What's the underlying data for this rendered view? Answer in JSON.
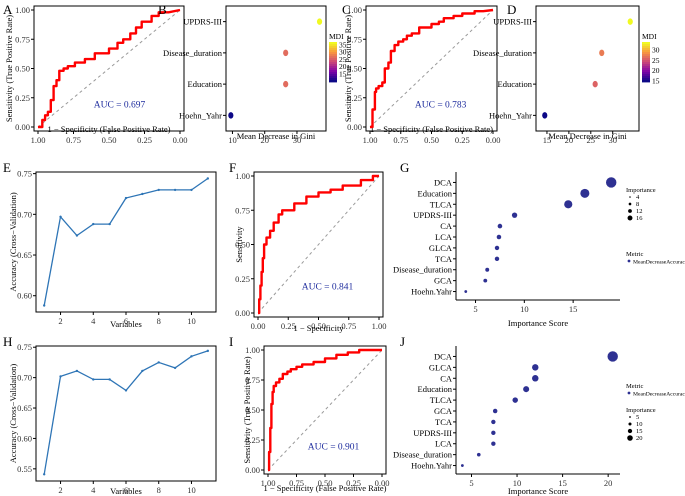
{
  "chart_data": [
    {
      "id": "A",
      "panel_label": "A",
      "type": "line",
      "subtype": "roc",
      "xlabel": "1 − Specificity (False Positive Rate)",
      "ylabel": "Sensitivity (True Positive Rate)",
      "xlim": [
        1.0,
        0.0
      ],
      "ylim": [
        0.0,
        1.0
      ],
      "x_ticks": [
        1.0,
        0.75,
        0.5,
        0.25,
        0.0
      ],
      "x_tick_labels": [
        "1.00",
        "0.75",
        "0.50",
        "0.25",
        "0.00"
      ],
      "y_ticks": [
        0.0,
        0.25,
        0.5,
        0.75,
        1.0
      ],
      "y_tick_labels": [
        "0.00",
        "0.25",
        "0.50",
        "0.75",
        "1.00"
      ],
      "annotation": "AUC = 0.697",
      "curve_color": "#ff0000",
      "diagonal": true,
      "x": [
        1.0,
        0.97,
        0.97,
        0.95,
        0.95,
        0.93,
        0.93,
        0.91,
        0.91,
        0.89,
        0.89,
        0.87,
        0.87,
        0.85,
        0.85,
        0.82,
        0.82,
        0.79,
        0.79,
        0.74,
        0.74,
        0.67,
        0.67,
        0.6,
        0.6,
        0.5,
        0.5,
        0.44,
        0.44,
        0.4,
        0.4,
        0.35,
        0.35,
        0.31,
        0.31,
        0.27,
        0.27,
        0.2,
        0.2,
        0.15,
        0.15,
        0.08,
        0.0
      ],
      "y": [
        0.0,
        0.0,
        0.06,
        0.06,
        0.1,
        0.1,
        0.13,
        0.13,
        0.23,
        0.23,
        0.35,
        0.35,
        0.4,
        0.4,
        0.48,
        0.48,
        0.5,
        0.5,
        0.52,
        0.52,
        0.55,
        0.55,
        0.58,
        0.58,
        0.63,
        0.63,
        0.67,
        0.67,
        0.72,
        0.72,
        0.75,
        0.75,
        0.8,
        0.8,
        0.85,
        0.85,
        0.9,
        0.9,
        0.95,
        0.95,
        0.98,
        0.98,
        1.0
      ]
    },
    {
      "id": "B",
      "panel_label": "B",
      "type": "scatter",
      "subtype": "importance",
      "xlabel": "Mean Decrease in Gini",
      "ylabel": "",
      "categories": [
        "Hoehn_Yahr",
        "Education",
        "Disease_duration",
        "UPDRS-III"
      ],
      "values": [
        9.5,
        26.5,
        26.5,
        37.0
      ],
      "xlim": [
        8,
        39
      ],
      "x_ticks": [
        10,
        20,
        30
      ],
      "x_tick_labels": [
        "10",
        "20",
        "30"
      ],
      "legend_title": "MDI",
      "legend_ticks": [
        15,
        20,
        25,
        30,
        35
      ],
      "legend_tick_labels": [
        "15",
        "20",
        "25",
        "30",
        "35"
      ],
      "color_range": [
        9.5,
        37.0
      ]
    },
    {
      "id": "C",
      "panel_label": "C",
      "type": "line",
      "subtype": "roc",
      "xlabel": "1 − Specificity (False Positive Rate)",
      "ylabel": "Sensitivity (True Positive Rate)",
      "xlim": [
        1.0,
        0.0
      ],
      "ylim": [
        0.0,
        1.0
      ],
      "x_ticks": [
        1.0,
        0.75,
        0.5,
        0.25,
        0.0
      ],
      "x_tick_labels": [
        "1.00",
        "0.75",
        "0.50",
        "0.25",
        "0.00"
      ],
      "y_ticks": [
        0.0,
        0.25,
        0.5,
        0.75,
        1.0
      ],
      "y_tick_labels": [
        "0.00",
        "0.25",
        "0.50",
        "0.75",
        "1.00"
      ],
      "annotation": "AUC = 0.783",
      "curve_color": "#ff0000",
      "diagonal": true,
      "x": [
        1.0,
        0.98,
        0.98,
        0.96,
        0.96,
        0.95,
        0.95,
        0.93,
        0.93,
        0.9,
        0.9,
        0.88,
        0.88,
        0.85,
        0.85,
        0.83,
        0.83,
        0.8,
        0.8,
        0.77,
        0.77,
        0.73,
        0.73,
        0.7,
        0.7,
        0.66,
        0.66,
        0.6,
        0.6,
        0.5,
        0.5,
        0.44,
        0.44,
        0.4,
        0.4,
        0.32,
        0.32,
        0.25,
        0.25,
        0.15,
        0.15,
        0.08,
        0.0
      ],
      "y": [
        0.0,
        0.0,
        0.15,
        0.15,
        0.3,
        0.3,
        0.33,
        0.33,
        0.35,
        0.35,
        0.38,
        0.38,
        0.5,
        0.5,
        0.55,
        0.55,
        0.65,
        0.65,
        0.7,
        0.7,
        0.73,
        0.73,
        0.75,
        0.75,
        0.78,
        0.78,
        0.8,
        0.8,
        0.85,
        0.85,
        0.88,
        0.88,
        0.9,
        0.9,
        0.93,
        0.93,
        0.95,
        0.95,
        0.97,
        0.97,
        0.99,
        0.99,
        1.0
      ]
    },
    {
      "id": "D",
      "panel_label": "D",
      "type": "scatter",
      "subtype": "importance",
      "xlabel": "Mean Decrease in Gini",
      "ylabel": "",
      "categories": [
        "Hoehn_Yahr",
        "Education",
        "Disease_duration",
        "UPDRS-III"
      ],
      "values": [
        14.5,
        26.0,
        27.5,
        34.0
      ],
      "xlim": [
        12.5,
        36
      ],
      "x_ticks": [
        15,
        20,
        25,
        30
      ],
      "x_tick_labels": [
        "15",
        "20",
        "25",
        "30"
      ],
      "legend_title": "MDI",
      "legend_ticks": [
        15,
        20,
        25,
        30
      ],
      "legend_tick_labels": [
        "15",
        "20",
        "25",
        "30"
      ],
      "color_range": [
        14.5,
        34.0
      ]
    },
    {
      "id": "E",
      "panel_label": "E",
      "type": "line",
      "subtype": "accuracy",
      "xlabel": "Variables",
      "ylabel": "Accuracy (Cross−Validation)",
      "x": [
        1,
        2,
        3,
        4,
        5,
        6,
        7,
        8,
        9,
        10,
        11
      ],
      "y": [
        0.588,
        0.697,
        0.674,
        0.688,
        0.688,
        0.72,
        0.725,
        0.73,
        0.73,
        0.73,
        0.744
      ],
      "xlim": [
        0.5,
        11.5
      ],
      "ylim": [
        0.58,
        0.752
      ],
      "x_ticks": [
        2,
        4,
        6,
        8,
        10
      ],
      "x_tick_labels": [
        "2",
        "4",
        "6",
        "8",
        "10"
      ],
      "y_ticks": [
        0.6,
        0.65,
        0.7,
        0.75
      ],
      "y_tick_labels": [
        "0.60",
        "0.65",
        "0.70",
        "0.75"
      ],
      "line_color": "#2e75b6"
    },
    {
      "id": "F",
      "panel_label": "F",
      "type": "line",
      "subtype": "roc",
      "xlabel": "1 − Specificity",
      "ylabel": "Sensitivity",
      "xlim": [
        0.0,
        1.0
      ],
      "ylim": [
        0.0,
        1.0
      ],
      "x_ticks": [
        0.0,
        0.25,
        0.5,
        0.75,
        1.0
      ],
      "x_tick_labels": [
        "0.00",
        "0.25",
        "0.50",
        "0.75",
        "1.00"
      ],
      "y_ticks": [
        0.0,
        0.25,
        0.5,
        0.75,
        1.0
      ],
      "y_tick_labels": [
        "0.00",
        "0.25",
        "0.50",
        "0.75",
        "1.00"
      ],
      "annotation": "AUC = 0.841",
      "curve_color": "#ff0000",
      "diagonal": true,
      "x": [
        0.0,
        0.01,
        0.01,
        0.02,
        0.02,
        0.03,
        0.03,
        0.04,
        0.04,
        0.05,
        0.05,
        0.07,
        0.07,
        0.1,
        0.1,
        0.13,
        0.13,
        0.17,
        0.17,
        0.2,
        0.2,
        0.3,
        0.3,
        0.4,
        0.4,
        0.5,
        0.5,
        0.6,
        0.6,
        0.7,
        0.7,
        0.85,
        0.85,
        0.95,
        0.95,
        1.0
      ],
      "y": [
        0.0,
        0.0,
        0.1,
        0.1,
        0.2,
        0.2,
        0.3,
        0.3,
        0.4,
        0.4,
        0.5,
        0.5,
        0.55,
        0.55,
        0.6,
        0.6,
        0.66,
        0.66,
        0.72,
        0.72,
        0.75,
        0.75,
        0.8,
        0.8,
        0.85,
        0.85,
        0.88,
        0.88,
        0.9,
        0.9,
        0.93,
        0.93,
        0.97,
        0.97,
        1.0,
        1.0
      ]
    },
    {
      "id": "G",
      "panel_label": "G",
      "type": "scatter",
      "subtype": "importance-size",
      "xlabel": "Importance Score",
      "ylabel": "",
      "categories": [
        "Hoehn.Yahr",
        "GCA",
        "Disease_duration",
        "TCA",
        "GLCA",
        "LCA",
        "CA",
        "UPDRS-III",
        "TLCA",
        "Education",
        "DCA"
      ],
      "values": [
        4.0,
        6.0,
        6.2,
        7.2,
        7.2,
        7.4,
        7.5,
        9.0,
        14.5,
        16.2,
        18.9
      ],
      "xlim": [
        3.0,
        19.8
      ],
      "x_ticks": [
        5,
        10,
        15
      ],
      "x_tick_labels": [
        "5",
        "10",
        "15"
      ],
      "legend_title": "Importance",
      "legend_ticks": [
        4,
        8,
        12,
        16
      ],
      "legend_tick_labels": [
        "4",
        "8",
        "12",
        "16"
      ],
      "metric_legend_title": "Metric",
      "metric_legend_label": "MeanDecreaseAccuracy",
      "point_color": "#2e3192",
      "size_range": [
        4.0,
        18.9
      ]
    },
    {
      "id": "H",
      "panel_label": "H",
      "type": "line",
      "subtype": "accuracy",
      "xlabel": "Variables",
      "ylabel": "Accuracy (Cross−Validation)",
      "x": [
        1,
        2,
        3,
        4,
        5,
        6,
        7,
        8,
        9,
        10,
        11
      ],
      "y": [
        0.541,
        0.702,
        0.711,
        0.697,
        0.697,
        0.679,
        0.711,
        0.725,
        0.716,
        0.735,
        0.744
      ],
      "xlim": [
        0.5,
        11.5
      ],
      "ylim": [
        0.53,
        0.752
      ],
      "x_ticks": [
        2,
        4,
        6,
        8,
        10
      ],
      "x_tick_labels": [
        "2",
        "4",
        "6",
        "8",
        "10"
      ],
      "y_ticks": [
        0.55,
        0.6,
        0.65,
        0.7,
        0.75
      ],
      "y_tick_labels": [
        "0.55",
        "0.60",
        "0.65",
        "0.70",
        "0.75"
      ],
      "line_color": "#2e75b6"
    },
    {
      "id": "I",
      "panel_label": "I",
      "type": "line",
      "subtype": "roc",
      "xlabel": "1 − Specificity (False Positive Rate)",
      "ylabel": "Sensitivity (True Positive Rate)",
      "xlim": [
        1.0,
        0.0
      ],
      "ylim": [
        0.0,
        1.0
      ],
      "x_ticks": [
        1.0,
        0.75,
        0.5,
        0.25,
        0.0
      ],
      "x_tick_labels": [
        "1.00",
        "0.75",
        "0.50",
        "0.25",
        "0.00"
      ],
      "y_ticks": [
        0.0,
        0.25,
        0.5,
        0.75,
        1.0
      ],
      "y_tick_labels": [
        "0.00",
        "0.25",
        "0.50",
        "0.75",
        "1.00"
      ],
      "annotation": "AUC = 0.901",
      "curve_color": "#ff0000",
      "diagonal": true,
      "x": [
        1.0,
        0.99,
        0.99,
        0.98,
        0.98,
        0.97,
        0.97,
        0.96,
        0.96,
        0.95,
        0.95,
        0.93,
        0.93,
        0.9,
        0.9,
        0.87,
        0.87,
        0.83,
        0.83,
        0.8,
        0.8,
        0.75,
        0.75,
        0.7,
        0.7,
        0.6,
        0.6,
        0.5,
        0.5,
        0.4,
        0.4,
        0.3,
        0.3,
        0.2,
        0.2,
        0.0
      ],
      "y": [
        0.0,
        0.0,
        0.15,
        0.15,
        0.35,
        0.35,
        0.55,
        0.55,
        0.65,
        0.65,
        0.7,
        0.7,
        0.73,
        0.73,
        0.76,
        0.76,
        0.8,
        0.8,
        0.82,
        0.82,
        0.84,
        0.84,
        0.86,
        0.86,
        0.88,
        0.88,
        0.9,
        0.9,
        0.93,
        0.93,
        0.96,
        0.96,
        0.98,
        0.98,
        1.0,
        1.0
      ]
    },
    {
      "id": "J",
      "panel_label": "J",
      "type": "scatter",
      "subtype": "importance-size",
      "xlabel": "Importance Score",
      "ylabel": "",
      "categories": [
        "Hoehn.Yahr",
        "Disease_duration",
        "LCA",
        "UPDRS-III",
        "TCA",
        "GCA",
        "TLCA",
        "Education",
        "CA",
        "GLCA",
        "DCA"
      ],
      "values": [
        4.0,
        5.8,
        7.4,
        7.4,
        7.4,
        7.6,
        9.8,
        11.0,
        12.0,
        12.0,
        20.5
      ],
      "xlim": [
        3.3,
        21.3
      ],
      "x_ticks": [
        5,
        10,
        15,
        20
      ],
      "x_tick_labels": [
        "5",
        "10",
        "15",
        "20"
      ],
      "legend_title": "Importance",
      "legend_ticks": [
        5,
        10,
        15,
        20
      ],
      "legend_tick_labels": [
        "5",
        "10",
        "15",
        "20"
      ],
      "metric_legend_title": "Metric",
      "metric_legend_label": "MeanDecreaseAccuracy",
      "point_color": "#2e3192",
      "size_range": [
        4.0,
        20.5
      ]
    }
  ]
}
